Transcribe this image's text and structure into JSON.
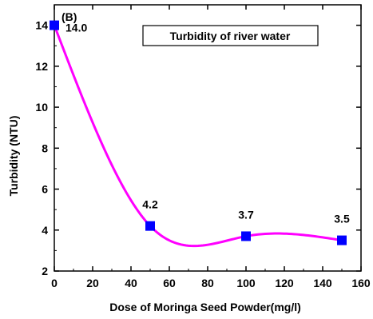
{
  "chart_data": {
    "type": "line",
    "panel_label": "(B)",
    "title": "Turbidity of river water",
    "xlabel": "Dose of Moringa Seed Powder(mg/l)",
    "ylabel": "Turbidity (NTU)",
    "xlim": [
      0,
      160
    ],
    "ylim": [
      2,
      15
    ],
    "x_ticks": [
      0,
      20,
      40,
      60,
      80,
      100,
      120,
      140,
      160
    ],
    "y_ticks": [
      2,
      4,
      6,
      8,
      10,
      12,
      14
    ],
    "legend_position": "top-right",
    "grid": false,
    "line_color": "#ff00ff",
    "marker_color": "#0000ff",
    "series": [
      {
        "x": [
          0,
          50,
          100,
          150
        ],
        "values": [
          14.0,
          4.2,
          3.7,
          3.5
        ],
        "labels": [
          "14.0",
          "4.2",
          "3.7",
          "3.5"
        ]
      }
    ]
  }
}
